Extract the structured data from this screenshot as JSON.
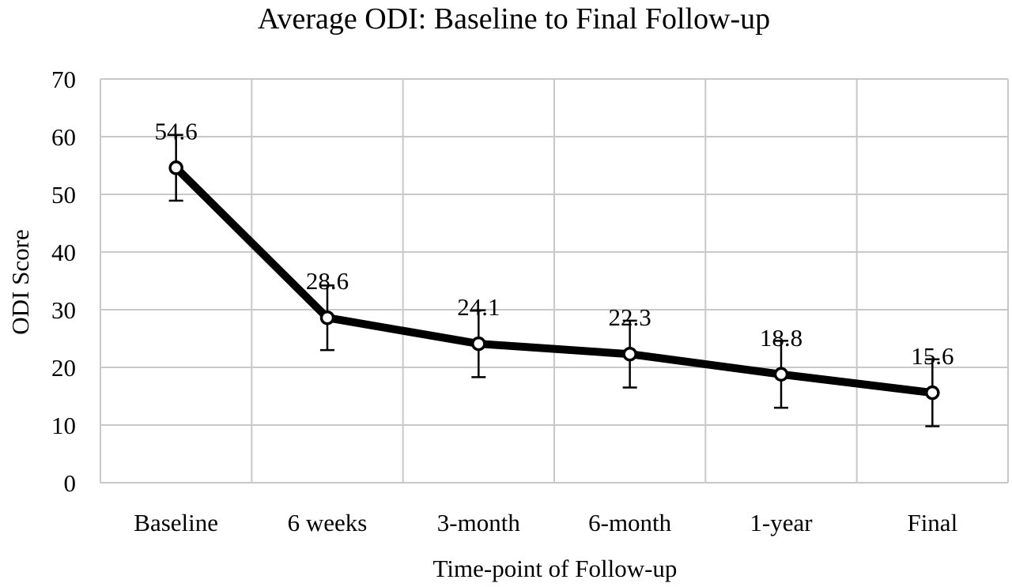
{
  "chart_data": {
    "type": "line",
    "title": "Average ODI: Baseline to Final Follow-up",
    "xlabel": "Time-point of Follow-up",
    "ylabel": "ODI Score",
    "categories": [
      "Baseline",
      "6 weeks",
      "3-month",
      "6-month",
      "1-year",
      "Final"
    ],
    "values": [
      54.6,
      28.6,
      24.1,
      22.3,
      18.8,
      15.6
    ],
    "data_labels": [
      "54.6",
      "28.6",
      "24.1",
      "22.3",
      "18.8",
      "15.6"
    ],
    "error_bars": {
      "low": [
        48.9,
        23.0,
        18.3,
        16.5,
        13.0,
        9.8
      ],
      "high": [
        60.3,
        34.2,
        29.9,
        28.1,
        24.6,
        21.4
      ]
    },
    "ylim": [
      0,
      70
    ],
    "yticks": [
      "0",
      "10",
      "20",
      "30",
      "40",
      "50",
      "60",
      "70"
    ],
    "grid": true,
    "legend": "none",
    "colors": {
      "line": "#000000",
      "marker_fill": "#ffffff",
      "grid": "#c8c8c8"
    }
  }
}
